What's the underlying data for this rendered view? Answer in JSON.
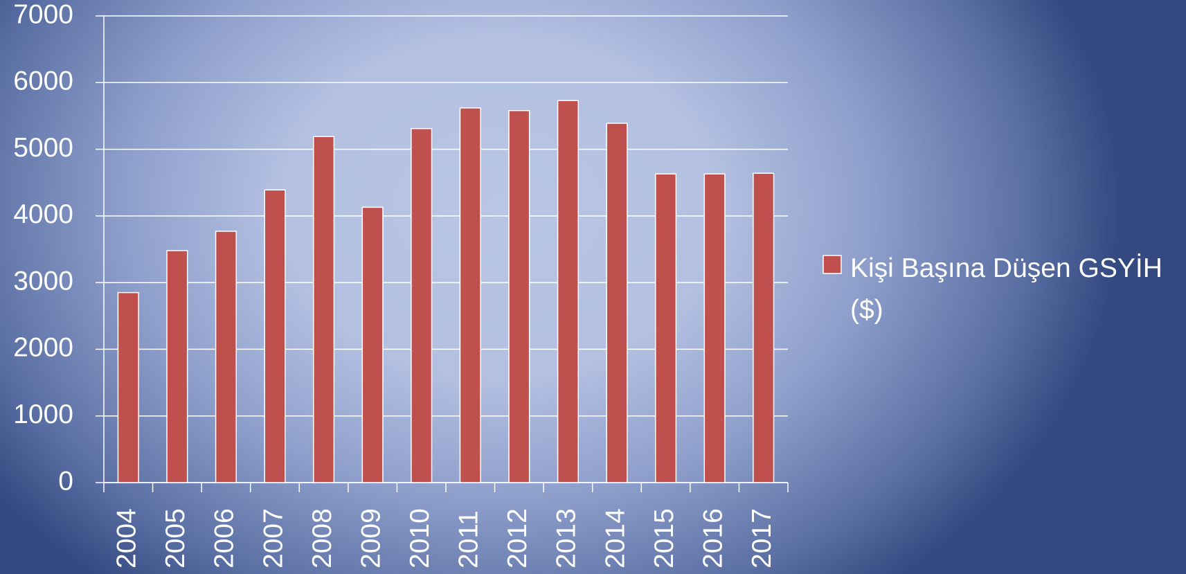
{
  "chart_data": {
    "type": "bar",
    "categories": [
      "2004",
      "2005",
      "2006",
      "2007",
      "2008",
      "2009",
      "2010",
      "2011",
      "2012",
      "2013",
      "2014",
      "2015",
      "2016",
      "2017"
    ],
    "series": [
      {
        "name": "Kişi Başına Düşen GSYİH ($)",
        "color": "#c0504d",
        "values": [
          2850,
          3480,
          3770,
          4390,
          5190,
          4130,
          5310,
          5620,
          5580,
          5730,
          5390,
          4630,
          4630,
          4640
        ]
      }
    ],
    "ylim": [
      0,
      7000
    ],
    "yticks": [
      0,
      1000,
      2000,
      3000,
      4000,
      5000,
      6000,
      7000
    ],
    "grid": true,
    "legend": "right"
  }
}
